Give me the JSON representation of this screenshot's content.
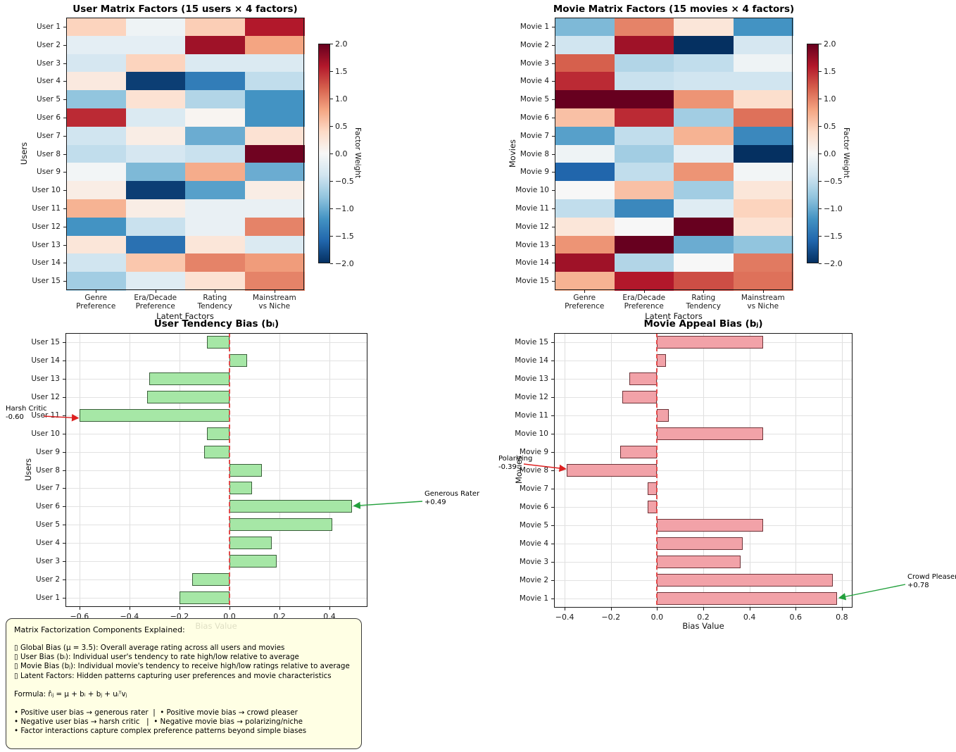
{
  "colors": {
    "user_bar_fill": "#a6e7a6",
    "user_bar_edge": "#3a5f3a",
    "movie_bar_fill": "#f2a2a8",
    "movie_bar_edge": "#6e3338",
    "zero_line": "#e24b4b",
    "annotation_red": "#dd2020",
    "annotation_green": "#22a03c",
    "info_box_bg": "#ffffe0",
    "cmap_name": "RdBu_r",
    "cmap_stops": [
      "#053061",
      "#2166ac",
      "#4393c3",
      "#92c5de",
      "#d1e5f0",
      "#f7f7f7",
      "#fddbc7",
      "#f4a582",
      "#d6604d",
      "#b2182b",
      "#67001f"
    ]
  },
  "chart_data": [
    {
      "id": "user_factors",
      "type": "heatmap",
      "title": "User Matrix Factors (15 users × 4 factors)",
      "xlabel": "Latent Factors",
      "ylabel": "Users",
      "col_labels": [
        "Genre\nPreference",
        "Era/Decade\nPreference",
        "Rating\nTendency",
        "Mainstream\nvs Niche"
      ],
      "rows": [
        "User 1",
        "User 2",
        "User 3",
        "User 4",
        "User 5",
        "User 6",
        "User 7",
        "User 8",
        "User 9",
        "User 10",
        "User 11",
        "User 12",
        "User 13",
        "User 14",
        "User 15"
      ],
      "values": [
        [
          0.45,
          -0.1,
          0.5,
          1.6
        ],
        [
          -0.2,
          -0.2,
          1.7,
          0.8
        ],
        [
          -0.35,
          0.45,
          -0.3,
          -0.3
        ],
        [
          0.2,
          -1.9,
          -1.4,
          -0.5
        ],
        [
          -0.8,
          0.3,
          -0.6,
          -1.2
        ],
        [
          1.5,
          -0.3,
          0.05,
          -1.2
        ],
        [
          -0.4,
          0.15,
          -1.0,
          0.3
        ],
        [
          -0.5,
          -0.35,
          -0.45,
          1.95
        ],
        [
          -0.05,
          -0.9,
          0.75,
          -1.0
        ],
        [
          0.15,
          -1.9,
          -1.1,
          0.15
        ],
        [
          0.7,
          0.15,
          -0.15,
          -0.15
        ],
        [
          -1.2,
          -0.45,
          -0.15,
          1.0
        ],
        [
          0.25,
          -1.5,
          0.25,
          -0.3
        ],
        [
          -0.4,
          0.55,
          1.0,
          0.85
        ],
        [
          -0.7,
          -0.25,
          0.3,
          1.0
        ]
      ],
      "colorbar": {
        "label": "Factor Weight",
        "ticks": [
          2.0,
          1.5,
          1.0,
          0.5,
          0.0,
          -0.5,
          -1.0,
          -1.5,
          -2.0
        ],
        "vmin": -2.0,
        "vmax": 2.0
      }
    },
    {
      "id": "movie_factors",
      "type": "heatmap",
      "title": "Movie Matrix Factors (15 movies × 4 factors)",
      "xlabel": "Latent Factors",
      "ylabel": "Movies",
      "col_labels": [
        "Genre\nPreference",
        "Era/Decade\nPreference",
        "Rating\nTendency",
        "Mainstream\nvs Niche"
      ],
      "rows": [
        "Movie 1",
        "Movie 2",
        "Movie 3",
        "Movie 4",
        "Movie 5",
        "Movie 6",
        "Movie 7",
        "Movie 8",
        "Movie 9",
        "Movie 10",
        "Movie 11",
        "Movie 12",
        "Movie 13",
        "Movie 14",
        "Movie 15"
      ],
      "values": [
        [
          -0.9,
          1.0,
          0.25,
          -1.2
        ],
        [
          -0.4,
          1.7,
          -2.0,
          -0.35
        ],
        [
          1.2,
          -0.6,
          -0.5,
          -0.1
        ],
        [
          1.5,
          -0.45,
          -0.4,
          -0.4
        ],
        [
          2.0,
          2.0,
          0.9,
          0.35
        ],
        [
          0.6,
          1.5,
          -0.7,
          1.1
        ],
        [
          -1.1,
          -0.5,
          0.7,
          -1.3
        ],
        [
          -0.1,
          -0.7,
          -0.2,
          -2.0
        ],
        [
          -1.6,
          -0.5,
          0.9,
          -0.05
        ],
        [
          0.0,
          0.6,
          -0.7,
          0.25
        ],
        [
          -0.5,
          -1.3,
          -0.25,
          0.45
        ],
        [
          0.25,
          0.0,
          2.0,
          0.3
        ],
        [
          0.9,
          2.0,
          -1.0,
          -0.8
        ],
        [
          1.7,
          -0.6,
          0.0,
          1.05
        ],
        [
          0.7,
          1.6,
          1.3,
          1.1
        ]
      ],
      "colorbar": {
        "label": "Factor Weight",
        "ticks": [
          2.0,
          1.5,
          1.0,
          0.5,
          0.0,
          -0.5,
          -1.0,
          -1.5,
          -2.0
        ],
        "vmin": -2.0,
        "vmax": 2.0
      }
    },
    {
      "id": "user_bias",
      "type": "bar",
      "title": "User Tendency Bias (bᵢ)",
      "xlabel": "Bias Value",
      "ylabel": "Users",
      "categories": [
        "User 1",
        "User 2",
        "User 3",
        "User 4",
        "User 5",
        "User 6",
        "User 7",
        "User 8",
        "User 9",
        "User 10",
        "User 11",
        "User 12",
        "User 13",
        "User 14",
        "User 15"
      ],
      "values": [
        -0.2,
        -0.15,
        0.19,
        0.17,
        0.41,
        0.49,
        0.09,
        0.13,
        -0.1,
        -0.09,
        -0.6,
        -0.33,
        -0.32,
        0.07,
        -0.09
      ],
      "xticks": [
        -0.6,
        -0.4,
        -0.2,
        0.0,
        0.2,
        0.4
      ],
      "xlim": [
        -0.656,
        0.552
      ],
      "grid": true,
      "zero_line": true,
      "annotations": [
        {
          "label": "Harsh Critic",
          "value_text": "-0.60",
          "target": "User 11",
          "value": -0.6,
          "arrow_color": "#dd2020"
        },
        {
          "label": "Generous Rater",
          "value_text": "+0.49",
          "target": "User 6",
          "value": 0.49,
          "arrow_color": "#22a03c"
        }
      ]
    },
    {
      "id": "movie_bias",
      "type": "bar",
      "title": "Movie Appeal Bias (bⱼ)",
      "xlabel": "Bias Value",
      "ylabel": "Movies",
      "categories": [
        "Movie 1",
        "Movie 2",
        "Movie 3",
        "Movie 4",
        "Movie 5",
        "Movie 6",
        "Movie 7",
        "Movie 8",
        "Movie 9",
        "Movie 10",
        "Movie 11",
        "Movie 12",
        "Movie 13",
        "Movie 14",
        "Movie 15"
      ],
      "values": [
        0.78,
        0.76,
        0.36,
        0.37,
        0.46,
        -0.04,
        -0.04,
        -0.39,
        -0.16,
        0.46,
        0.05,
        -0.15,
        -0.12,
        0.04,
        0.46
      ],
      "xticks": [
        -0.4,
        -0.2,
        0.0,
        0.2,
        0.4,
        0.6,
        0.8
      ],
      "xlim": [
        -0.446,
        0.846
      ],
      "grid": true,
      "zero_line": true,
      "annotations": [
        {
          "label": "Polarizing",
          "value_text": "-0.39",
          "target": "Movie 8",
          "value": -0.39,
          "arrow_color": "#dd2020"
        },
        {
          "label": "Crowd Pleaser",
          "value_text": "+0.78",
          "target": "Movie 1",
          "value": 0.78,
          "arrow_color": "#22a03c"
        }
      ]
    }
  ],
  "info_box": {
    "title": "Matrix Factorization Components Explained:",
    "lines": [
      "",
      "▯ Global Bias (μ = 3.5): Overall average rating across all users and movies",
      "▯ User Bias (bᵢ): Individual user's tendency to rate high/low relative to average",
      "▯ Movie Bias (bⱼ): Individual movie's tendency to receive high/low ratings relative to average",
      "▯ Latent Factors: Hidden patterns capturing user preferences and movie characteristics",
      "",
      "Formula: r̂ᵢⱼ = μ + bᵢ + bⱼ + uᵢᵀvⱼ",
      "",
      "• Positive user bias → generous rater  |  • Positive movie bias → crowd pleaser",
      "• Negative user bias → harsh critic   |  • Negative movie bias → polarizing/niche",
      "• Factor interactions capture complex preference patterns beyond simple biases"
    ]
  }
}
